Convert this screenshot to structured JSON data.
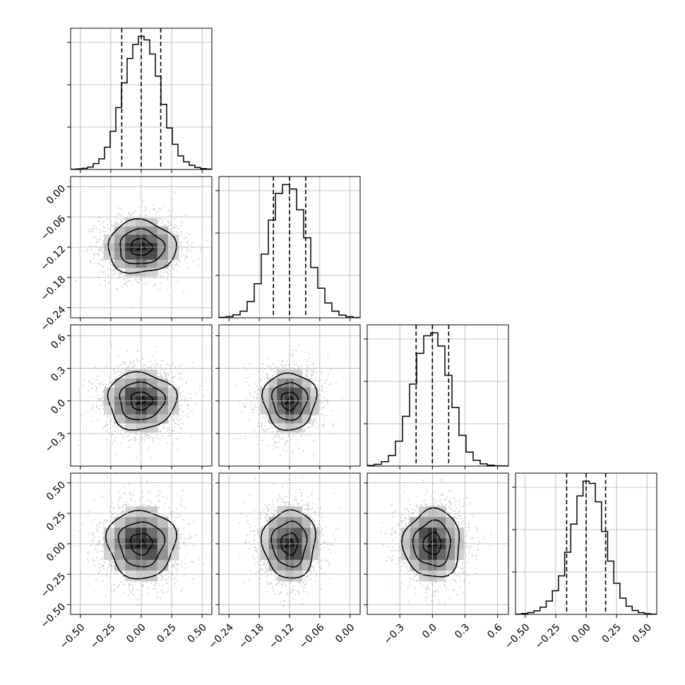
{
  "chart_data": {
    "type": "corner",
    "n_params": 4,
    "params": [
      {
        "mean": 0.0,
        "std": 0.16,
        "range": [
          -0.58,
          0.58
        ],
        "ticks": [
          -0.5,
          -0.25,
          0.0,
          0.25,
          0.5
        ],
        "tick_labels": [
          "−0.50",
          "−0.25",
          "0.00",
          "0.25",
          "0.50"
        ],
        "quantiles": [
          -0.16,
          0.0,
          0.16
        ],
        "hist_counts": [
          2,
          4,
          8,
          16,
          40,
          72,
          150,
          258,
          418,
          585,
          750,
          845,
          900,
          875,
          780,
          630,
          440,
          280,
          170,
          92,
          52,
          28,
          13,
          6,
          3
        ]
      },
      {
        "mean": -0.12,
        "std": 0.03,
        "range": [
          -0.26,
          0.02
        ],
        "ticks": [
          -0.24,
          -0.18,
          -0.12,
          -0.06,
          0.0
        ],
        "tick_labels": [
          "−0.24",
          "−0.18",
          "−0.12",
          "−0.06",
          "0.00"
        ],
        "quantiles": [
          -0.152,
          -0.12,
          -0.088
        ],
        "hist_counts": [
          3,
          8,
          20,
          45,
          110,
          230,
          430,
          660,
          840,
          900,
          870,
          730,
          540,
          340,
          200,
          100,
          45,
          18,
          7,
          2
        ]
      },
      {
        "mean": 0.0,
        "std": 0.15,
        "range": [
          -0.6,
          0.7
        ],
        "ticks": [
          -0.3,
          0.0,
          0.3,
          0.6
        ],
        "tick_labels": [
          "−0.3",
          "0.0",
          "0.3",
          "0.6"
        ],
        "quantiles": [
          -0.15,
          0.0,
          0.15
        ],
        "hist_counts": [
          4,
          12,
          30,
          72,
          170,
          340,
          560,
          770,
          890,
          910,
          820,
          620,
          400,
          210,
          95,
          40,
          15,
          6,
          2,
          1
        ]
      },
      {
        "mean": 0.0,
        "std": 0.16,
        "range": [
          -0.58,
          0.58
        ],
        "ticks": [
          -0.5,
          -0.25,
          0.0,
          0.25,
          0.5
        ],
        "tick_labels": [
          "−0.50",
          "−0.25",
          "0.00",
          "0.25",
          "0.50"
        ],
        "quantiles": [
          -0.16,
          0.0,
          0.16
        ],
        "hist_counts": [
          2,
          6,
          12,
          24,
          48,
          90,
          160,
          260,
          420,
          610,
          800,
          900,
          885,
          760,
          560,
          360,
          210,
          110,
          55,
          26,
          12,
          5,
          2
        ]
      }
    ],
    "contour_levels": [
      0.5,
      0.8,
      1.0
    ],
    "colors": {
      "axes": "#000000",
      "grid": "#b0b0b0",
      "scatter": "#8a8a8a"
    }
  }
}
